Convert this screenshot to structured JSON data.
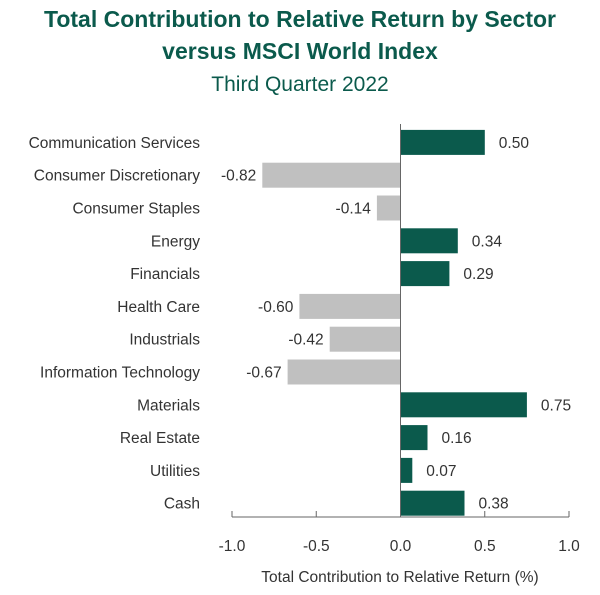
{
  "header": {
    "title_line1": "Total Contribution to Relative Return by Sector",
    "title_line2": "versus MSCI World Index",
    "subtitle": "Third Quarter 2022"
  },
  "colors": {
    "positive": "#0b5a4c",
    "negative": "#c0c0c0",
    "title": "#0b5a4c",
    "axis": "#666666"
  },
  "chart_data": {
    "type": "bar",
    "orientation": "horizontal",
    "title": "Total Contribution to Relative Return by Sector versus MSCI World Index",
    "subtitle": "Third Quarter 2022",
    "xlabel": "Total Contribution to Relative Return (%)",
    "ylabel": "",
    "xlim": [
      -1.0,
      1.0
    ],
    "xticks": [
      -1.0,
      -0.5,
      0.0,
      0.5,
      1.0
    ],
    "xtick_labels": [
      "-1.0",
      "-0.5",
      "0.0",
      "0.5",
      "1.0"
    ],
    "grid": false,
    "categories": [
      "Communication Services",
      "Consumer Discretionary",
      "Consumer Staples",
      "Energy",
      "Financials",
      "Health Care",
      "Industrials",
      "Information Technology",
      "Materials",
      "Real Estate",
      "Utilities",
      "Cash"
    ],
    "values": [
      0.5,
      -0.82,
      -0.14,
      0.34,
      0.29,
      -0.6,
      -0.42,
      -0.67,
      0.75,
      0.16,
      0.07,
      0.38
    ],
    "value_labels": [
      "0.50",
      "-0.82",
      "-0.14",
      "0.34",
      "0.29",
      "-0.60",
      "-0.42",
      "-0.67",
      "0.75",
      "0.16",
      "0.07",
      "0.38"
    ]
  }
}
